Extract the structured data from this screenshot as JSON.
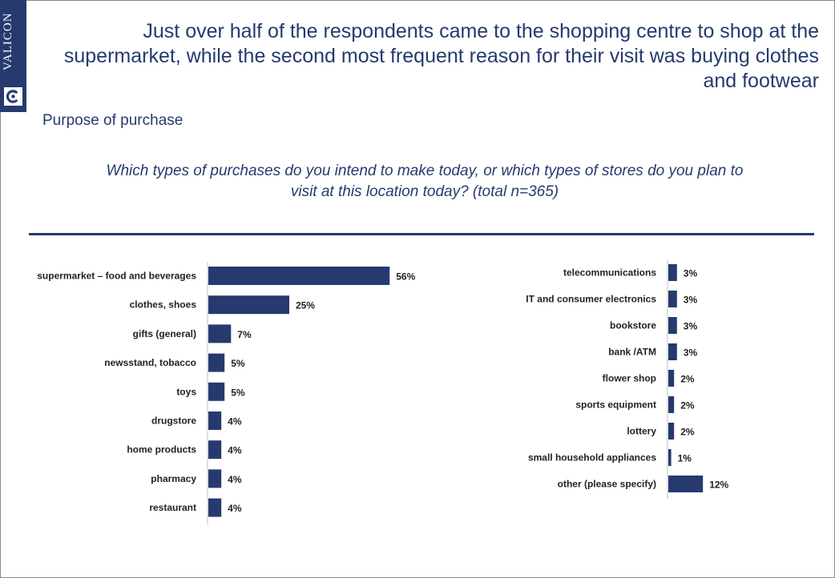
{
  "brand": {
    "name": "VALICON",
    "color": "#263a6e"
  },
  "headline": "Just over half of the respondents came to the shopping centre to shop at the supermarket, while the second most frequent reason for their visit was buying clothes and footwear",
  "section_title": "Purpose of purchase",
  "question": "Which types of purchases do you intend to make today, or which types of stores do you plan to visit at this location today? (total n=365)",
  "chart_data": [
    {
      "type": "bar",
      "orientation": "horizontal",
      "categories": [
        "supermarket – food and beverages",
        "clothes, shoes",
        "gifts (general)",
        "newsstand, tobacco",
        "toys",
        "drugstore",
        "home products",
        "pharmacy",
        "restaurant"
      ],
      "values": [
        56,
        25,
        7,
        5,
        5,
        4,
        4,
        4,
        4
      ],
      "value_labels": [
        "56%",
        "25%",
        "7%",
        "5%",
        "5%",
        "4%",
        "4%",
        "4%",
        "4%"
      ],
      "unit": "%",
      "bar_color": "#263a6e",
      "grid": false
    },
    {
      "type": "bar",
      "orientation": "horizontal",
      "categories": [
        "telecommunications",
        "IT and consumer electronics",
        "bookstore",
        "bank /ATM",
        "flower shop",
        "sports equipment",
        "lottery",
        "small household appliances",
        "other (please specify)"
      ],
      "values": [
        3,
        3,
        3,
        3,
        2,
        2,
        2,
        1,
        12
      ],
      "value_labels": [
        "3%",
        "3%",
        "3%",
        "3%",
        "2%",
        "2%",
        "2%",
        "1%",
        "12%"
      ],
      "unit": "%",
      "bar_color": "#263a6e",
      "grid": false
    }
  ]
}
